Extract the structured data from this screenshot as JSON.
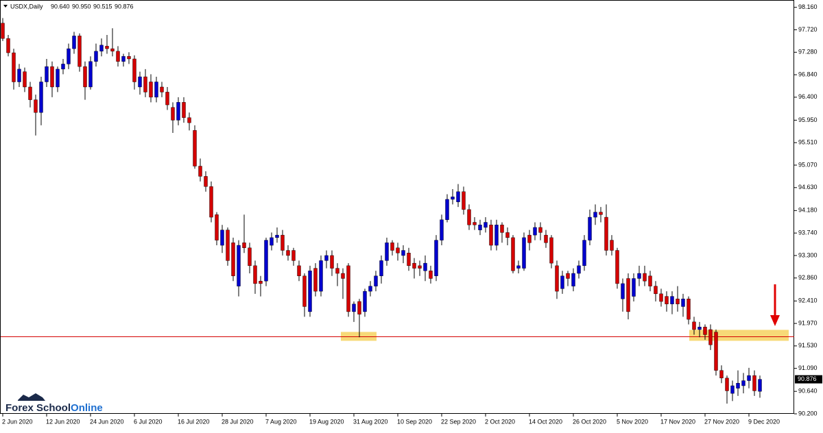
{
  "header": {
    "symbol": "USDX,Daily",
    "ohlc": [
      "90.640",
      "90.950",
      "90.515",
      "90.876"
    ]
  },
  "logo": {
    "first": "Forex School",
    "second": "Online"
  },
  "chart_data": {
    "type": "candlestick",
    "categories": [
      "2 Jun 2020",
      null,
      null,
      null,
      null,
      null,
      null,
      null,
      "12 Jun 2020",
      null,
      null,
      null,
      null,
      null,
      null,
      null,
      "24 Jun 2020",
      null,
      null,
      null,
      null,
      null,
      null,
      null,
      "6 Jul 2020",
      null,
      null,
      null,
      null,
      null,
      null,
      null,
      "16 Jul 2020",
      null,
      null,
      null,
      null,
      null,
      null,
      null,
      "28 Jul 2020",
      null,
      null,
      null,
      null,
      null,
      null,
      null,
      "7 Aug 2020",
      null,
      null,
      null,
      null,
      null,
      null,
      null,
      "19 Aug 2020",
      null,
      null,
      null,
      null,
      null,
      null,
      null,
      "31 Aug 2020",
      null,
      null,
      null,
      null,
      null,
      null,
      null,
      "10 Sep 2020",
      null,
      null,
      null,
      null,
      null,
      null,
      null,
      "22 Sep 2020",
      null,
      null,
      null,
      null,
      null,
      null,
      null,
      "2 Oct 2020",
      null,
      null,
      null,
      null,
      null,
      null,
      null,
      "14 Oct 2020",
      null,
      null,
      null,
      null,
      null,
      null,
      null,
      "26 Oct 2020",
      null,
      null,
      null,
      null,
      null,
      null,
      null,
      "5 Nov 2020",
      null,
      null,
      null,
      null,
      null,
      null,
      null,
      "17 Nov 2020",
      null,
      null,
      null,
      null,
      null,
      null,
      null,
      "27 Nov 2020",
      null,
      null,
      null,
      null,
      null,
      null,
      null,
      "9 Dec 2020",
      null,
      null
    ],
    "open": [
      97.85,
      97.55,
      97.27,
      96.7,
      96.9,
      96.6,
      96.35,
      96.1,
      96.7,
      97.0,
      96.6,
      96.95,
      97.05,
      97.35,
      97.6,
      97.0,
      96.6,
      97.1,
      97.3,
      97.4,
      97.35,
      97.3,
      97.1,
      97.2,
      97.15,
      96.6,
      96.8,
      96.7,
      96.4,
      96.6,
      96.5,
      96.2,
      95.95,
      96.3,
      96.0,
      95.75,
      95.05,
      94.85,
      94.65,
      94.1,
      93.5,
      93.8,
      93.55,
      92.7,
      93.55,
      93.45,
      93.1,
      92.8,
      92.8,
      93.5,
      93.65,
      93.7,
      93.4,
      93.4,
      93.1,
      92.9,
      92.2,
      93.05,
      92.6,
      93.2,
      93.3,
      93.05,
      92.95,
      93.1,
      92.2,
      92.4,
      92.2,
      92.6,
      92.7,
      92.9,
      93.2,
      93.55,
      93.45,
      93.3,
      93.35,
      93.15,
      93.1,
      93.0,
      93.0,
      92.9,
      93.6,
      94.0,
      94.4,
      94.35,
      94.55,
      94.2,
      93.95,
      93.8,
      93.85,
      93.9,
      93.5,
      93.9,
      93.75,
      93.65,
      93.05,
      93.05,
      93.7,
      93.7,
      93.85,
      93.7,
      93.65,
      93.1,
      92.65,
      92.95,
      92.7,
      92.95,
      93.1,
      93.6,
      94.05,
      94.15,
      94.05,
      93.6,
      93.4,
      92.45,
      92.85,
      92.5,
      92.85,
      92.95,
      92.9,
      92.7,
      92.55,
      92.5,
      92.35,
      92.45,
      92.3,
      92.45,
      92.0,
      91.85,
      91.9,
      91.85,
      91.8,
      91.05,
      90.9,
      90.6,
      90.7,
      90.75,
      90.85,
      90.95,
      90.64
    ],
    "high": [
      97.95,
      97.62,
      97.35,
      97.05,
      96.98,
      96.7,
      96.45,
      96.8,
      97.15,
      97.1,
      97.0,
      97.15,
      97.45,
      97.68,
      97.65,
      97.1,
      97.2,
      97.45,
      97.55,
      97.62,
      97.75,
      97.4,
      97.25,
      97.28,
      97.22,
      96.9,
      96.95,
      96.85,
      96.8,
      96.7,
      96.6,
      96.3,
      96.4,
      96.4,
      96.1,
      95.85,
      95.2,
      94.95,
      94.75,
      94.15,
      93.9,
      93.85,
      93.65,
      93.6,
      94.1,
      93.55,
      93.2,
      92.9,
      93.65,
      93.75,
      93.85,
      93.8,
      93.5,
      93.45,
      93.2,
      92.95,
      93.1,
      93.15,
      93.3,
      93.4,
      93.4,
      93.15,
      93.05,
      93.15,
      92.4,
      92.45,
      92.65,
      92.8,
      93.0,
      93.3,
      93.65,
      93.6,
      93.55,
      93.5,
      93.45,
      93.25,
      93.2,
      93.3,
      93.1,
      93.7,
      94.1,
      94.5,
      94.6,
      94.7,
      94.65,
      94.3,
      94.05,
      94.0,
      94.05,
      94.0,
      94.0,
      93.95,
      93.85,
      93.7,
      93.2,
      93.75,
      93.8,
      93.95,
      93.95,
      93.8,
      93.7,
      93.2,
      93.0,
      93.0,
      93.05,
      93.2,
      93.7,
      94.2,
      94.3,
      94.25,
      94.3,
      93.7,
      93.45,
      92.85,
      92.95,
      92.95,
      93.1,
      93.1,
      93.0,
      92.8,
      92.65,
      92.6,
      92.6,
      92.7,
      92.55,
      92.5,
      92.1,
      92.0,
      91.95,
      91.95,
      91.85,
      91.15,
      90.95,
      90.85,
      91.05,
      91.0,
      91.1,
      91.05,
      90.95
    ],
    "low": [
      97.5,
      97.2,
      96.55,
      96.6,
      96.5,
      96.2,
      95.65,
      95.85,
      96.6,
      96.4,
      96.5,
      96.85,
      96.95,
      97.25,
      96.9,
      96.35,
      96.55,
      97.0,
      97.2,
      97.25,
      97.2,
      97.0,
      97.0,
      97.05,
      96.55,
      96.45,
      96.4,
      96.3,
      96.3,
      96.4,
      96.15,
      95.7,
      95.85,
      95.9,
      95.75,
      95.0,
      94.75,
      94.55,
      93.95,
      93.5,
      93.35,
      93.1,
      92.8,
      92.5,
      93.35,
      92.95,
      92.55,
      92.5,
      92.7,
      93.4,
      93.55,
      93.3,
      93.2,
      93.1,
      92.8,
      92.1,
      92.1,
      92.5,
      92.5,
      93.05,
      92.9,
      92.7,
      92.45,
      92.1,
      92.0,
      91.7,
      92.1,
      92.5,
      92.6,
      92.75,
      93.1,
      93.3,
      93.2,
      93.15,
      93.0,
      92.85,
      92.9,
      92.8,
      92.75,
      92.8,
      93.5,
      93.95,
      94.3,
      94.25,
      94.1,
      93.8,
      93.8,
      93.7,
      93.75,
      93.4,
      93.4,
      93.55,
      93.5,
      92.95,
      92.95,
      93.0,
      93.4,
      93.6,
      93.6,
      93.45,
      93.05,
      92.45,
      92.55,
      92.7,
      92.6,
      92.85,
      93.0,
      93.5,
      93.9,
      93.95,
      93.3,
      93.3,
      92.65,
      92.2,
      92.05,
      92.4,
      92.7,
      92.7,
      92.6,
      92.4,
      92.3,
      92.2,
      92.15,
      92.2,
      92.1,
      91.95,
      91.75,
      91.7,
      91.65,
      91.45,
      90.95,
      90.8,
      90.4,
      90.45,
      90.55,
      90.6,
      90.7,
      90.55,
      90.515
    ],
    "close": [
      97.55,
      97.27,
      96.7,
      96.95,
      96.6,
      96.35,
      96.1,
      96.7,
      97.0,
      96.6,
      96.95,
      97.05,
      97.35,
      97.6,
      97.0,
      96.6,
      97.1,
      97.3,
      97.42,
      97.35,
      97.3,
      97.1,
      97.2,
      97.15,
      96.7,
      96.8,
      96.5,
      96.4,
      96.7,
      96.5,
      96.25,
      95.95,
      96.3,
      96.0,
      95.9,
      95.05,
      94.85,
      94.65,
      94.05,
      93.6,
      93.8,
      93.2,
      92.9,
      93.5,
      93.45,
      93.1,
      92.75,
      92.75,
      93.6,
      93.65,
      93.7,
      93.4,
      93.3,
      93.2,
      92.9,
      92.3,
      93.0,
      92.6,
      93.2,
      93.3,
      93.05,
      92.95,
      92.85,
      92.2,
      92.35,
      92.15,
      92.6,
      92.7,
      92.9,
      93.2,
      93.55,
      93.4,
      93.35,
      93.4,
      93.1,
      93.05,
      93.05,
      93.15,
      92.85,
      93.6,
      94.0,
      94.4,
      94.45,
      94.55,
      94.2,
      93.9,
      93.9,
      93.9,
      93.95,
      93.5,
      93.9,
      93.75,
      93.65,
      93.0,
      93.1,
      93.65,
      93.55,
      93.85,
      93.75,
      93.55,
      93.15,
      92.6,
      92.9,
      92.85,
      92.95,
      93.1,
      93.6,
      94.05,
      94.15,
      94.1,
      93.4,
      93.4,
      92.75,
      92.75,
      92.2,
      92.85,
      92.95,
      92.8,
      92.7,
      92.55,
      92.4,
      92.35,
      92.5,
      92.35,
      92.45,
      92.05,
      91.85,
      91.9,
      91.75,
      91.55,
      91.05,
      90.9,
      90.65,
      90.75,
      90.8,
      90.85,
      90.95,
      90.65,
      90.876
    ],
    "up_color": "#0000cd",
    "down_color": "#d40000",
    "ylim": [
      90.2,
      98.29
    ],
    "yticks": [
      {
        "value": 98.16,
        "label": "98.160"
      },
      {
        "value": 97.72,
        "label": "97.720"
      },
      {
        "value": 97.28,
        "label": "97.280"
      },
      {
        "value": 96.84,
        "label": "96.840"
      },
      {
        "value": 96.4,
        "label": "96.400"
      },
      {
        "value": 95.95,
        "label": "95.950"
      },
      {
        "value": 95.51,
        "label": "95.510"
      },
      {
        "value": 95.07,
        "label": "95.070"
      },
      {
        "value": 94.63,
        "label": "94.630"
      },
      {
        "value": 94.18,
        "label": "94.180"
      },
      {
        "value": 93.74,
        "label": "93.740"
      },
      {
        "value": 93.3,
        "label": "93.300"
      },
      {
        "value": 92.86,
        "label": "92.860"
      },
      {
        "value": 92.41,
        "label": "92.410"
      },
      {
        "value": 91.97,
        "label": "91.970"
      },
      {
        "value": 91.53,
        "label": "91.530"
      },
      {
        "value": 91.09,
        "label": "91.090"
      },
      {
        "value": 90.64,
        "label": "90.640"
      },
      {
        "value": 90.2,
        "label": "90.200"
      }
    ],
    "last_price": {
      "value": 90.876,
      "label": "90.876"
    },
    "reference_line": {
      "value": 91.71,
      "color": "#d40000"
    },
    "grid": false
  }
}
